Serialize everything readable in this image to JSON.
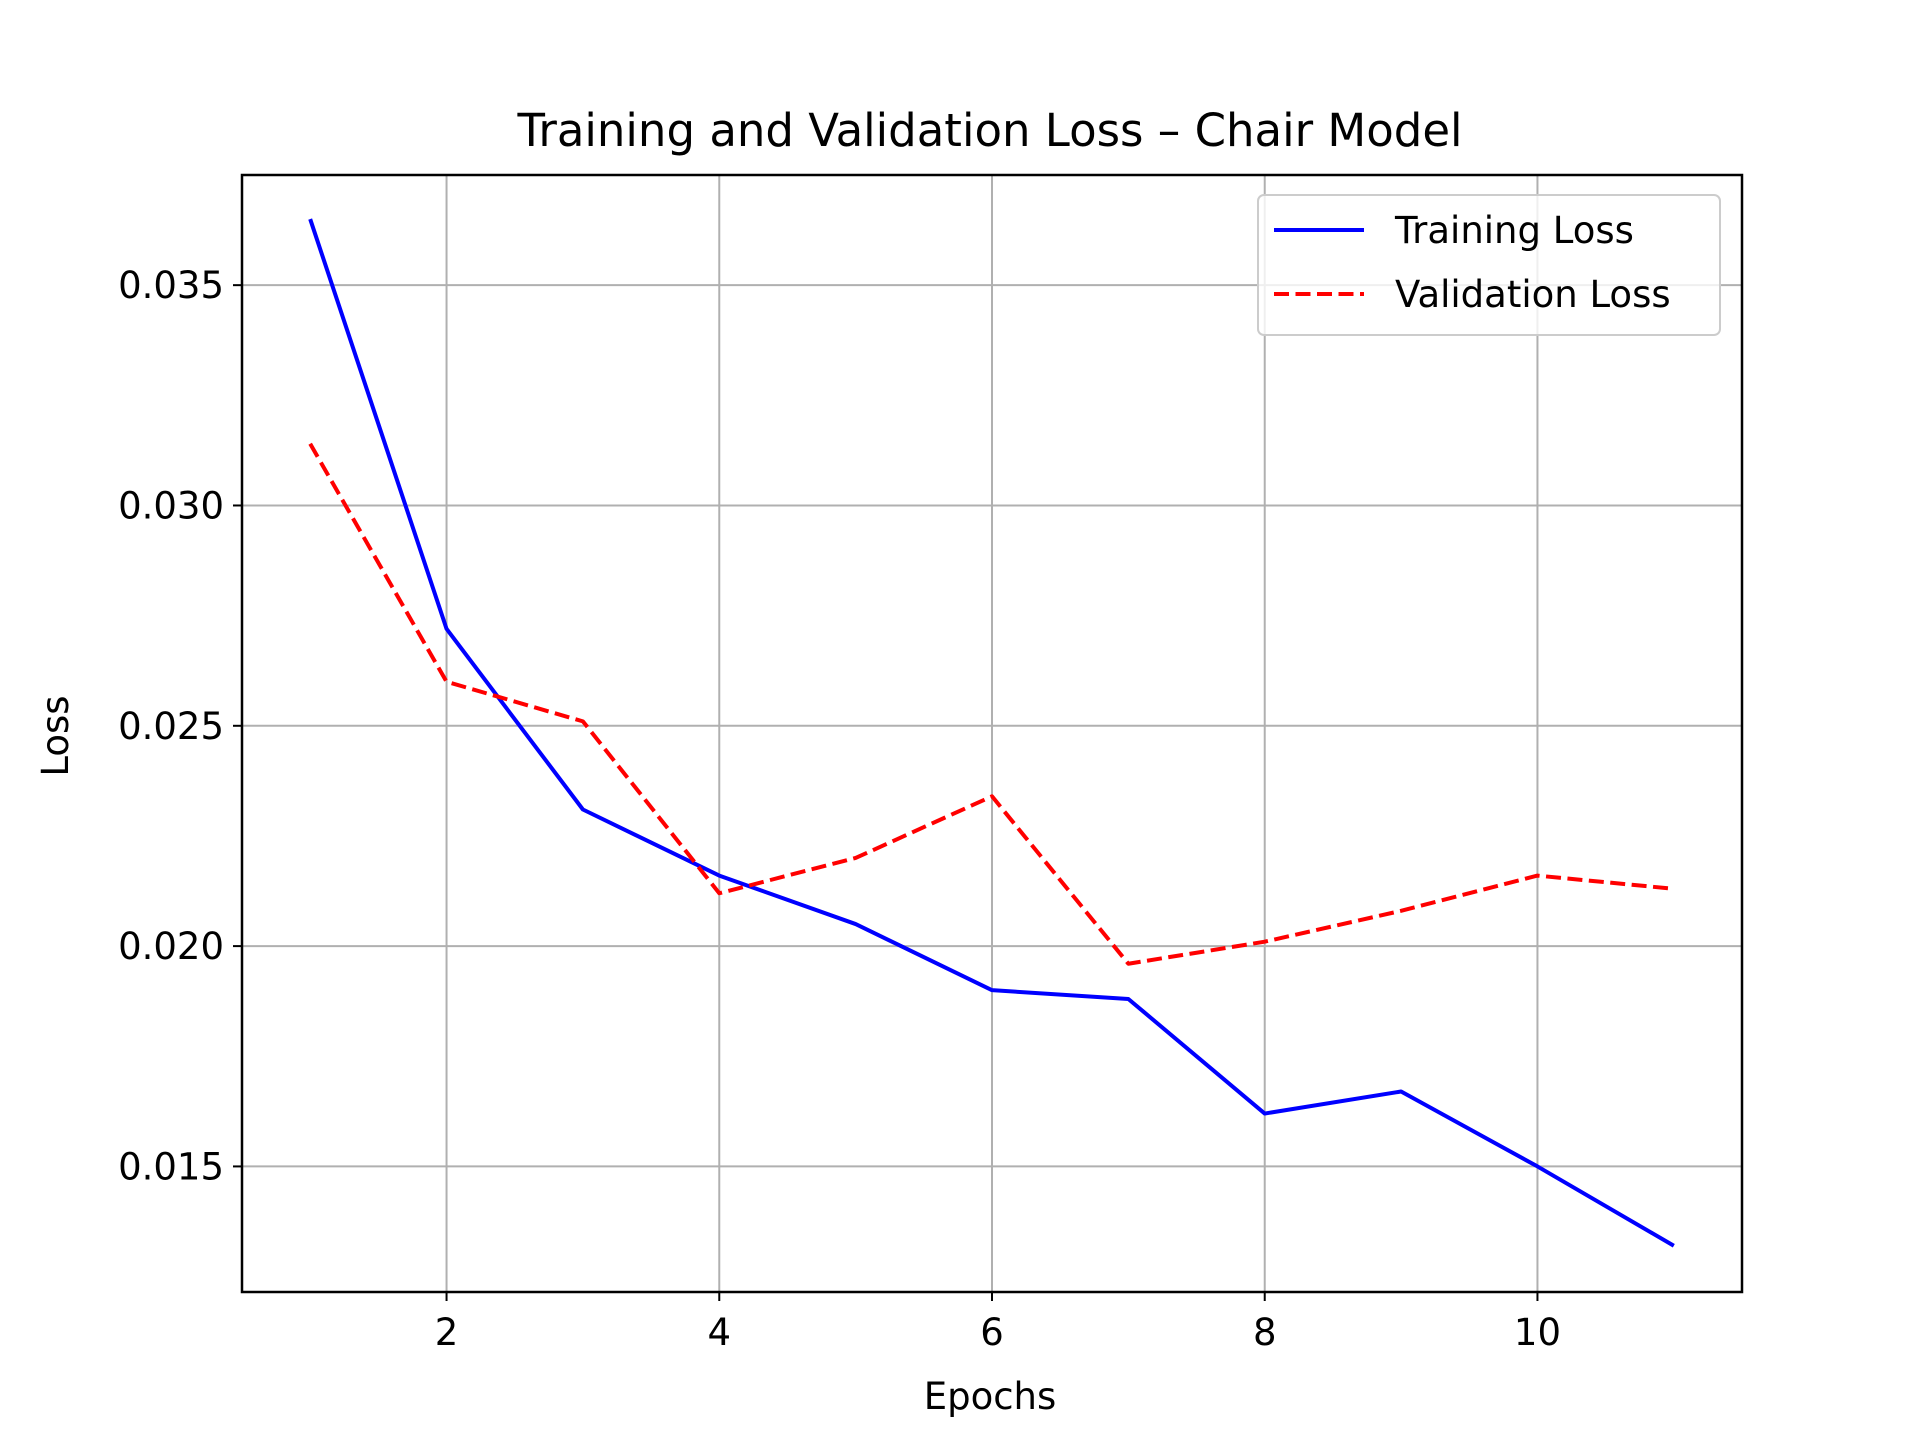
{
  "chart_data": {
    "type": "line",
    "title": "Training and Validation Loss – Chair Model",
    "xlabel": "Epochs",
    "ylabel": "Loss",
    "x": [
      1,
      2,
      3,
      4,
      5,
      6,
      7,
      8,
      9,
      10,
      11
    ],
    "xlim": [
      0.5,
      11.5
    ],
    "ylim": [
      0.01215,
      0.0375
    ],
    "x_ticks": [
      2,
      4,
      6,
      8,
      10
    ],
    "x_tick_labels": [
      "2",
      "4",
      "6",
      "8",
      "10"
    ],
    "y_ticks": [
      0.015,
      0.02,
      0.025,
      0.03,
      0.035
    ],
    "y_tick_labels": [
      "0.015",
      "0.020",
      "0.025",
      "0.030",
      "0.035"
    ],
    "grid": true,
    "legend_position": "top-right",
    "series": [
      {
        "name": "Training Loss",
        "color": "#0000ff",
        "style": "solid",
        "values": [
          0.0365,
          0.0272,
          0.0231,
          0.0216,
          0.0205,
          0.019,
          0.0188,
          0.0162,
          0.0167,
          0.015,
          0.0132
        ]
      },
      {
        "name": "Validation Loss",
        "color": "#ff0000",
        "style": "dashed",
        "values": [
          0.0314,
          0.026,
          0.0251,
          0.0212,
          0.022,
          0.0234,
          0.0196,
          0.0201,
          0.0208,
          0.0216,
          0.0213
        ]
      }
    ]
  }
}
